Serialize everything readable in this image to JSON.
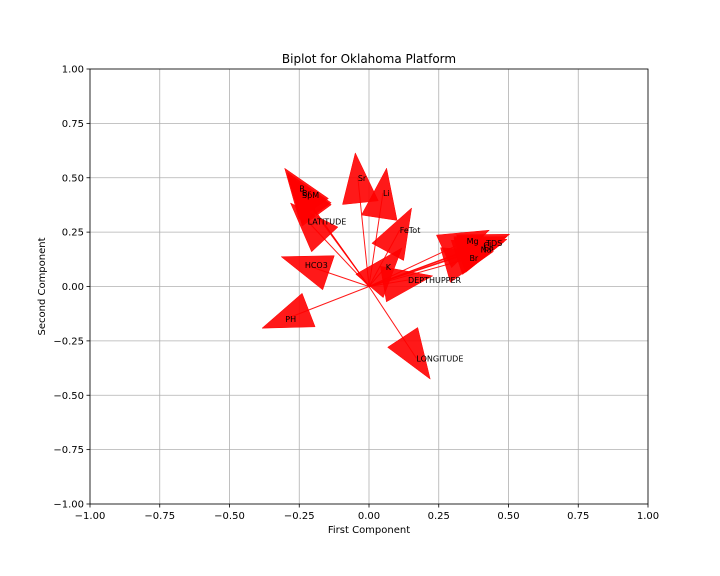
{
  "chart_data": {
    "type": "scatter",
    "subtype": "biplot-arrows",
    "title": "Biplot for Oklahoma Platform",
    "xlabel": "First Component",
    "ylabel": "Second Component",
    "xlim": [
      -1.0,
      1.0
    ],
    "ylim": [
      -1.0,
      1.0
    ],
    "xticks": [
      "−1.00",
      "−0.75",
      "−0.50",
      "−0.25",
      "0.00",
      "0.25",
      "0.50",
      "0.75",
      "1.00"
    ],
    "yticks": [
      "−1.00",
      "−0.75",
      "−0.50",
      "−0.25",
      "0.00",
      "0.25",
      "0.50",
      "0.75",
      "1.00"
    ],
    "grid": true,
    "arrow_color": "#ff0000",
    "vectors": [
      {
        "label": "Sr",
        "x": -0.04,
        "y": 0.5
      },
      {
        "label": "Li",
        "x": 0.05,
        "y": 0.43
      },
      {
        "label": "B",
        "x": -0.25,
        "y": 0.45
      },
      {
        "label": "Br",
        "x": -0.24,
        "y": 0.43
      },
      {
        "label": "SpM",
        "x": -0.24,
        "y": 0.42
      },
      {
        "label": "LATITUDE",
        "x": -0.22,
        "y": 0.3
      },
      {
        "label": "FeTot",
        "x": 0.11,
        "y": 0.26
      },
      {
        "label": "Mg",
        "x": 0.35,
        "y": 0.21
      },
      {
        "label": "TDS",
        "x": 0.42,
        "y": 0.2
      },
      {
        "label": "Cl",
        "x": 0.41,
        "y": 0.19
      },
      {
        "label": "Ca",
        "x": 0.41,
        "y": 0.18
      },
      {
        "label": "Na",
        "x": 0.4,
        "y": 0.17
      },
      {
        "label": "Br",
        "x": 0.36,
        "y": 0.13
      },
      {
        "label": "HCO3",
        "x": -0.23,
        "y": 0.1
      },
      {
        "label": "K",
        "x": 0.06,
        "y": 0.09
      },
      {
        "label": "DEPTHUPPER",
        "x": 0.14,
        "y": 0.03
      },
      {
        "label": "PH",
        "x": -0.3,
        "y": -0.15
      },
      {
        "label": "LONGITUDE",
        "x": 0.17,
        "y": -0.33
      }
    ]
  }
}
